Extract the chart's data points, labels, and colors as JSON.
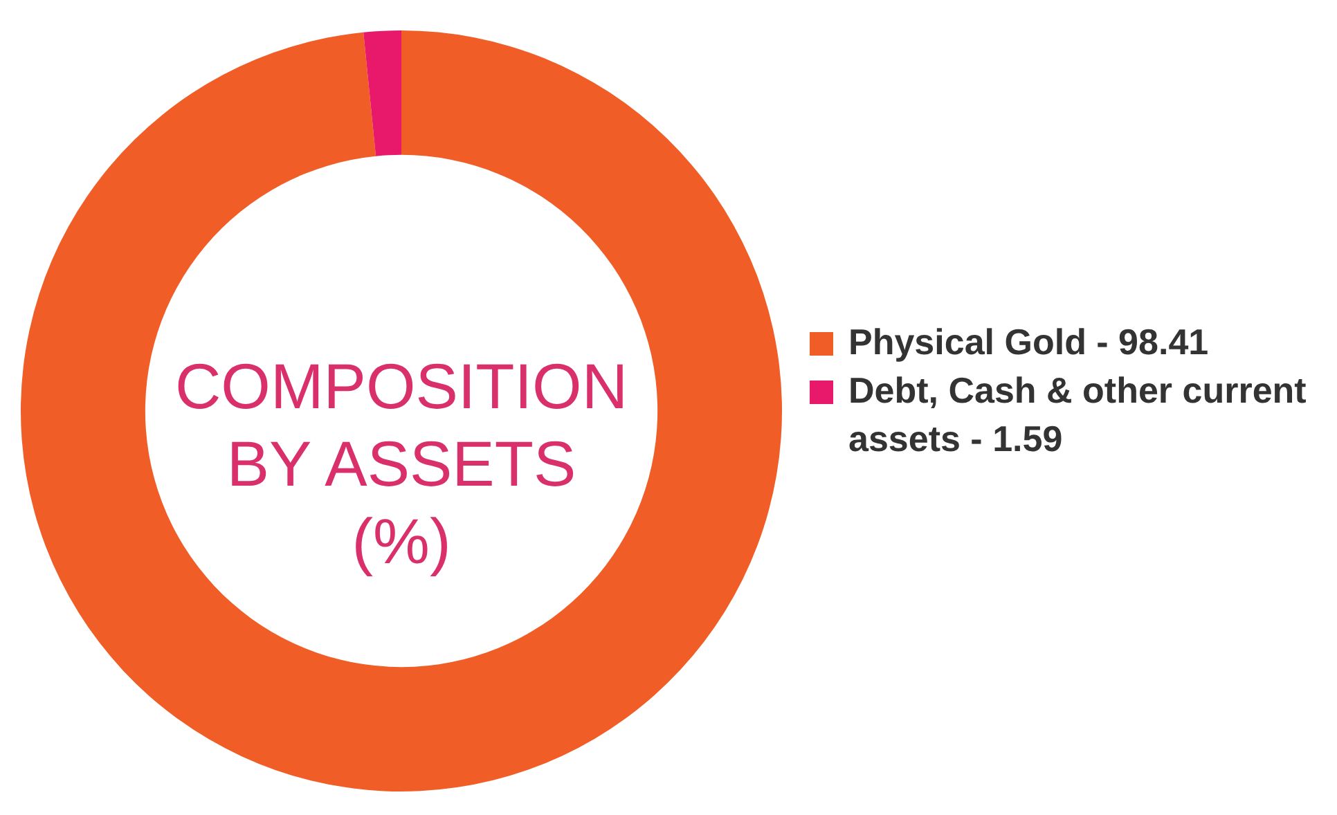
{
  "chart_data": {
    "type": "donut",
    "title": "COMPOSITION BY ASSETS (%)",
    "categories": [
      "Physical Gold - 98.41",
      "Debt, Cash & other current assets - 1.59"
    ],
    "values": [
      98.41,
      1.59
    ],
    "colors": [
      "#f15d27",
      "#e8196b"
    ],
    "legend": "right"
  }
}
